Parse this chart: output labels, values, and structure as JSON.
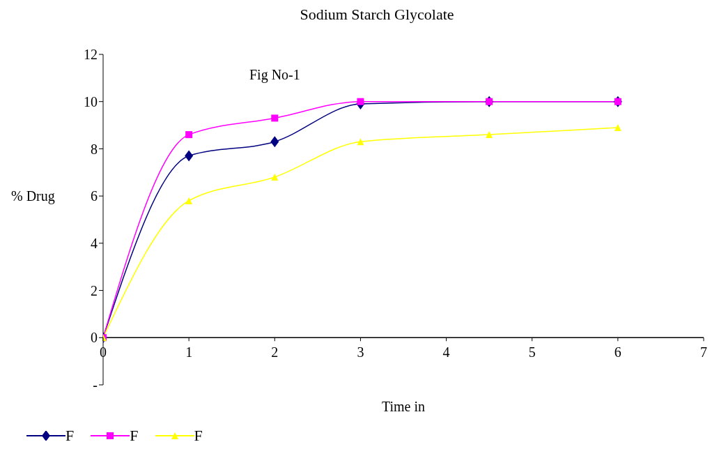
{
  "chart_data": {
    "type": "line",
    "title": "Sodium Starch Glycolate",
    "xlabel": "Time   in",
    "ylabel": "%   Drug",
    "annotations": [
      "Fig No-1"
    ],
    "x": [
      0,
      1,
      2,
      3,
      4.5,
      6
    ],
    "xlim": [
      0,
      7
    ],
    "xticks": [
      0,
      1,
      2,
      3,
      4,
      5,
      6,
      7
    ],
    "ylim": [
      -2,
      12
    ],
    "yticks": [
      {
        "value": -2,
        "label": "-"
      },
      0,
      2,
      4,
      6,
      8,
      10,
      12
    ],
    "grid": false,
    "legend": "bottom left",
    "line_style": "solid",
    "series": [
      {
        "name": "F",
        "color": "#000080",
        "marker": "diamond",
        "values": [
          0,
          7.7,
          8.3,
          9.9,
          10,
          10
        ]
      },
      {
        "name": "F",
        "color": "#ff00ff",
        "marker": "square",
        "values": [
          0,
          8.6,
          9.3,
          10,
          10,
          10
        ]
      },
      {
        "name": "F",
        "color": "#ffff00",
        "marker": "triangle",
        "values": [
          0,
          5.8,
          6.8,
          8.3,
          8.6,
          8.9
        ]
      }
    ]
  }
}
